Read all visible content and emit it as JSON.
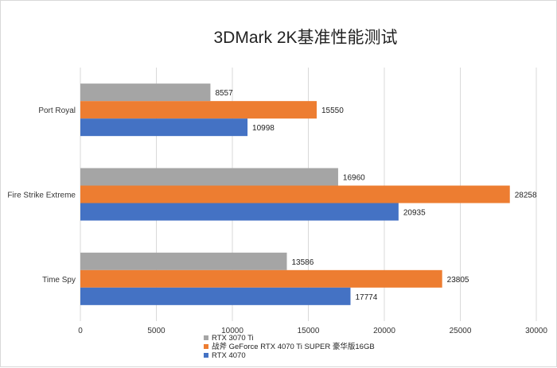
{
  "chart_data": {
    "type": "bar",
    "orientation": "horizontal",
    "title": "3DMark 2K基准性能测试",
    "categories": [
      "Port Royal",
      "Fire Strike Extreme",
      "Time Spy"
    ],
    "series": [
      {
        "name": "RTX 3070 Ti",
        "color": "#a5a5a5",
        "values": [
          8557,
          16960,
          13586
        ]
      },
      {
        "name": "战斧 GeForce RTX 4070 Ti SUPER 豪华版16GB",
        "color": "#ed7d31",
        "values": [
          15550,
          28258,
          23805
        ]
      },
      {
        "name": "RTX 4070",
        "color": "#4472c4",
        "values": [
          10998,
          20935,
          17774
        ]
      }
    ],
    "xlim": [
      0,
      30000
    ],
    "xticks": [
      0,
      5000,
      10000,
      15000,
      20000,
      25000,
      30000
    ],
    "grid": true,
    "legend_position": "bottom-left",
    "data_labels": true
  }
}
